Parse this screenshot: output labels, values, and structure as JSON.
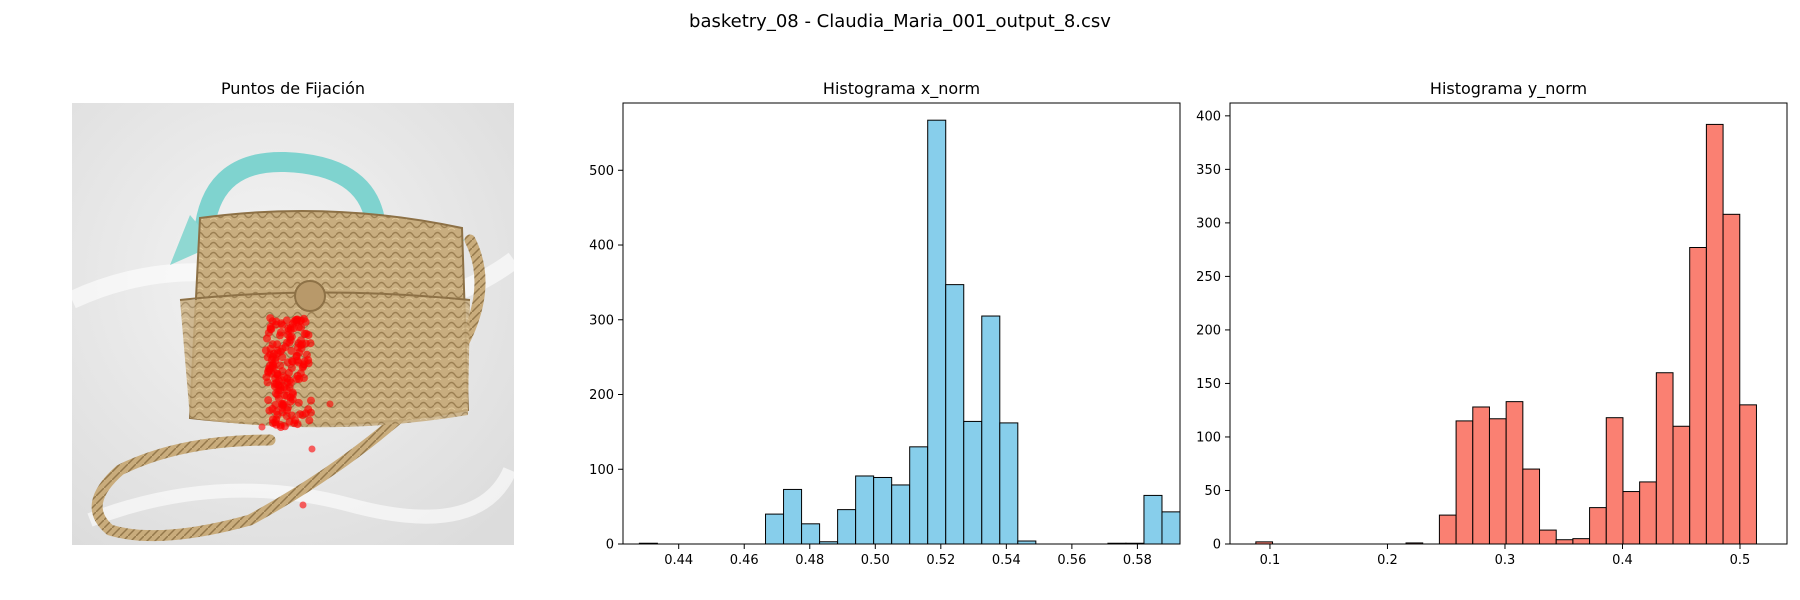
{
  "figure": {
    "suptitle": "basketry_08 - Claudia_Maria_001_output_8.csv"
  },
  "panels": {
    "image": {
      "title": "Puntos de Fijación",
      "picture": "wicker basket bag with turquoise bow and red fixation points"
    }
  },
  "chart_data": [
    {
      "type": "bar",
      "title": "Histograma x_norm",
      "xlabel": "",
      "ylabel": "",
      "xlim": [
        0.423,
        0.593
      ],
      "ylim": [
        0,
        590
      ],
      "xticks": [
        0.44,
        0.46,
        0.48,
        0.5,
        0.52,
        0.54,
        0.56,
        0.58
      ],
      "yticks": [
        0,
        100,
        200,
        300,
        400,
        500
      ],
      "bin_edges": [
        0.428,
        0.4335,
        0.439,
        0.4445,
        0.45,
        0.4555,
        0.461,
        0.4665,
        0.472,
        0.4775,
        0.483,
        0.4885,
        0.494,
        0.4995,
        0.505,
        0.5105,
        0.516,
        0.5215,
        0.527,
        0.5325,
        0.538,
        0.5435,
        0.549,
        0.5545,
        0.56,
        0.5655,
        0.571,
        0.5765,
        0.582,
        0.5875,
        0.593
      ],
      "values": [
        1,
        0,
        0,
        0,
        0,
        0,
        0,
        40,
        73,
        27,
        3,
        46,
        91,
        89,
        79,
        130,
        567,
        347,
        164,
        305,
        162,
        4,
        0,
        0,
        0,
        0,
        1,
        1,
        65,
        43
      ],
      "color": "#87ceeb",
      "grid": false
    },
    {
      "type": "bar",
      "title": "Histograma y_norm",
      "xlabel": "",
      "ylabel": "",
      "xlim": [
        0.066,
        0.54
      ],
      "ylim": [
        0,
        412
      ],
      "xticks": [
        0.1,
        0.2,
        0.3,
        0.4,
        0.5
      ],
      "xtick_labels": [
        "0.1",
        "0.2",
        "0.3",
        "0.4",
        "0.5"
      ],
      "yticks": [
        0,
        50,
        100,
        150,
        200,
        250,
        300,
        350,
        400
      ],
      "bin_edges": [
        0.088,
        0.1022,
        0.1164,
        0.1306,
        0.1448,
        0.159,
        0.1732,
        0.1874,
        0.2016,
        0.2158,
        0.23,
        0.2442,
        0.2584,
        0.2726,
        0.2868,
        0.301,
        0.3152,
        0.3294,
        0.3436,
        0.3578,
        0.372,
        0.3862,
        0.4004,
        0.4146,
        0.4288,
        0.443,
        0.4572,
        0.4714,
        0.4856,
        0.4998,
        0.514
      ],
      "values": [
        2,
        0,
        0,
        0,
        0,
        0,
        0,
        0,
        0,
        1,
        0,
        27,
        115,
        128,
        117,
        133,
        70,
        13,
        4,
        5,
        34,
        118,
        49,
        58,
        160,
        110,
        277,
        392,
        308,
        130
      ],
      "color": "#fa8072",
      "grid": false
    }
  ]
}
